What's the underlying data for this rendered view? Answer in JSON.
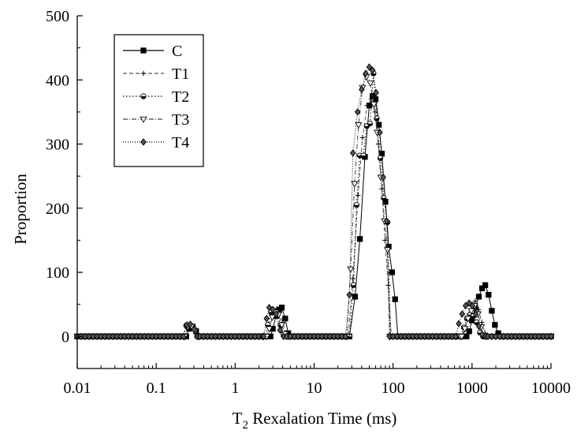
{
  "chart_data": {
    "type": "line",
    "x_scale": "log",
    "xlabel_main": "T",
    "xlabel_sub": "2",
    "xlabel_rest": " Rexalation Time (ms)",
    "ylabel": "Proportion",
    "xlim": [
      0.01,
      10000
    ],
    "ylim": [
      -50,
      500
    ],
    "x_ticks": [
      {
        "value": 0.01,
        "label": "0.01"
      },
      {
        "value": 0.1,
        "label": "0.1"
      },
      {
        "value": 1,
        "label": "1"
      },
      {
        "value": 10,
        "label": "10"
      },
      {
        "value": 100,
        "label": "100"
      },
      {
        "value": 1000,
        "label": "1000"
      },
      {
        "value": 10000,
        "label": "10000"
      }
    ],
    "y_ticks": [
      {
        "value": 0,
        "label": "0"
      },
      {
        "value": 100,
        "label": "100"
      },
      {
        "value": 200,
        "label": "200"
      },
      {
        "value": 300,
        "label": "300"
      },
      {
        "value": 400,
        "label": "400"
      },
      {
        "value": 500,
        "label": "500"
      }
    ],
    "legend_position": "top-left",
    "series": [
      {
        "name": "C",
        "dash": "solid",
        "marker": "square",
        "line_color": "#000000",
        "points": [
          [
            0.24,
            0
          ],
          [
            0.26,
            12
          ],
          [
            0.29,
            15
          ],
          [
            0.32,
            8
          ],
          [
            0.35,
            0
          ],
          [
            2.8,
            0
          ],
          [
            3.0,
            12
          ],
          [
            3.3,
            32
          ],
          [
            3.6,
            42
          ],
          [
            3.9,
            45
          ],
          [
            4.3,
            28
          ],
          [
            4.7,
            5
          ],
          [
            5.2,
            0
          ],
          [
            28,
            0
          ],
          [
            33,
            62
          ],
          [
            38,
            152
          ],
          [
            44,
            280
          ],
          [
            50,
            360
          ],
          [
            55,
            375
          ],
          [
            60,
            370
          ],
          [
            66,
            330
          ],
          [
            72,
            285
          ],
          [
            80,
            210
          ],
          [
            88,
            140
          ],
          [
            97,
            100
          ],
          [
            106,
            58
          ],
          [
            115,
            0
          ],
          [
            850,
            0
          ],
          [
            920,
            8
          ],
          [
            1000,
            25
          ],
          [
            1100,
            45
          ],
          [
            1220,
            62
          ],
          [
            1340,
            75
          ],
          [
            1470,
            80
          ],
          [
            1620,
            65
          ],
          [
            1780,
            40
          ],
          [
            1950,
            18
          ],
          [
            2150,
            5
          ],
          [
            2350,
            0
          ]
        ]
      },
      {
        "name": "T1",
        "dash": "5,3",
        "marker": "plus",
        "line_color": "#555555",
        "points": [
          [
            0.23,
            0
          ],
          [
            0.25,
            14
          ],
          [
            0.28,
            17
          ],
          [
            0.31,
            10
          ],
          [
            0.34,
            0
          ],
          [
            2.5,
            0
          ],
          [
            2.7,
            15
          ],
          [
            3.0,
            35
          ],
          [
            3.3,
            40
          ],
          [
            3.6,
            38
          ],
          [
            4.0,
            22
          ],
          [
            4.4,
            5
          ],
          [
            4.8,
            0
          ],
          [
            27,
            0
          ],
          [
            31,
            90
          ],
          [
            36,
            220
          ],
          [
            41,
            310
          ],
          [
            47,
            360
          ],
          [
            53,
            370
          ],
          [
            59,
            350
          ],
          [
            65,
            300
          ],
          [
            72,
            230
          ],
          [
            79,
            150
          ],
          [
            87,
            80
          ],
          [
            95,
            0
          ],
          [
            760,
            0
          ],
          [
            830,
            15
          ],
          [
            910,
            35
          ],
          [
            1000,
            50
          ],
          [
            1100,
            55
          ],
          [
            1210,
            42
          ],
          [
            1330,
            22
          ],
          [
            1460,
            5
          ],
          [
            1600,
            0
          ]
        ]
      },
      {
        "name": "T2",
        "dash": "1.5,2.5",
        "marker": "circle",
        "line_color": "#000000",
        "points": [
          [
            0.22,
            0
          ],
          [
            0.24,
            17
          ],
          [
            0.27,
            18
          ],
          [
            0.3,
            12
          ],
          [
            0.33,
            0
          ],
          [
            2.4,
            0
          ],
          [
            2.6,
            18
          ],
          [
            2.85,
            38
          ],
          [
            3.1,
            40
          ],
          [
            3.4,
            36
          ],
          [
            3.75,
            18
          ],
          [
            4.1,
            3
          ],
          [
            4.5,
            0
          ],
          [
            28,
            0
          ],
          [
            31.5,
            80
          ],
          [
            34.5,
            205
          ],
          [
            38,
            282
          ],
          [
            42,
            282
          ],
          [
            46.5,
            328
          ],
          [
            51,
            332
          ],
          [
            56.5,
            410
          ],
          [
            62,
            340
          ],
          [
            69,
            278
          ],
          [
            76,
            216
          ],
          [
            85,
            178
          ],
          [
            93,
            0
          ],
          [
            720,
            0
          ],
          [
            790,
            14
          ],
          [
            860,
            28
          ],
          [
            950,
            34
          ],
          [
            1040,
            32
          ],
          [
            1140,
            22
          ],
          [
            1260,
            6
          ],
          [
            1380,
            0
          ]
        ]
      },
      {
        "name": "T3",
        "dash": "6,2,1,2",
        "marker": "triangle",
        "line_color": "#444444",
        "points": [
          [
            0.23,
            0
          ],
          [
            0.25,
            15
          ],
          [
            0.28,
            16
          ],
          [
            0.31,
            9
          ],
          [
            0.34,
            0
          ],
          [
            2.5,
            0
          ],
          [
            2.7,
            12
          ],
          [
            2.95,
            30
          ],
          [
            3.25,
            38
          ],
          [
            3.55,
            34
          ],
          [
            3.9,
            18
          ],
          [
            4.3,
            4
          ],
          [
            4.7,
            0
          ],
          [
            26,
            0
          ],
          [
            29,
            105
          ],
          [
            32.5,
            238
          ],
          [
            36.5,
            330
          ],
          [
            41,
            388
          ],
          [
            46,
            405
          ],
          [
            51.5,
            395
          ],
          [
            57,
            362
          ],
          [
            63,
            318
          ],
          [
            70,
            248
          ],
          [
            78,
            180
          ],
          [
            85,
            135
          ],
          [
            91,
            0
          ],
          [
            740,
            0
          ],
          [
            810,
            12
          ],
          [
            890,
            28
          ],
          [
            980,
            40
          ],
          [
            1080,
            48
          ],
          [
            1190,
            35
          ],
          [
            1310,
            15
          ],
          [
            1440,
            2
          ],
          [
            1580,
            0
          ]
        ]
      },
      {
        "name": "T4",
        "dash": "1,2",
        "marker": "diamond",
        "line_color": "#000000",
        "points": [
          [
            0.22,
            0
          ],
          [
            0.245,
            18
          ],
          [
            0.27,
            19
          ],
          [
            0.3,
            11
          ],
          [
            0.33,
            0
          ],
          [
            2.3,
            0
          ],
          [
            2.5,
            28
          ],
          [
            2.7,
            45
          ],
          [
            3.0,
            42
          ],
          [
            3.3,
            35
          ],
          [
            3.7,
            10
          ],
          [
            4.1,
            0
          ],
          [
            25,
            0
          ],
          [
            28,
            65
          ],
          [
            31,
            286
          ],
          [
            35.5,
            350
          ],
          [
            40,
            385
          ],
          [
            45,
            410
          ],
          [
            50,
            420
          ],
          [
            55,
            415
          ],
          [
            61,
            380
          ],
          [
            68,
            318
          ],
          [
            75,
            248
          ],
          [
            83,
            180
          ],
          [
            90,
            0
          ],
          [
            620,
            0
          ],
          [
            680,
            20
          ],
          [
            750,
            35
          ],
          [
            830,
            48
          ],
          [
            920,
            52
          ],
          [
            1010,
            48
          ],
          [
            1110,
            35
          ],
          [
            1220,
            16
          ],
          [
            1340,
            3
          ],
          [
            1480,
            0
          ]
        ]
      }
    ]
  }
}
